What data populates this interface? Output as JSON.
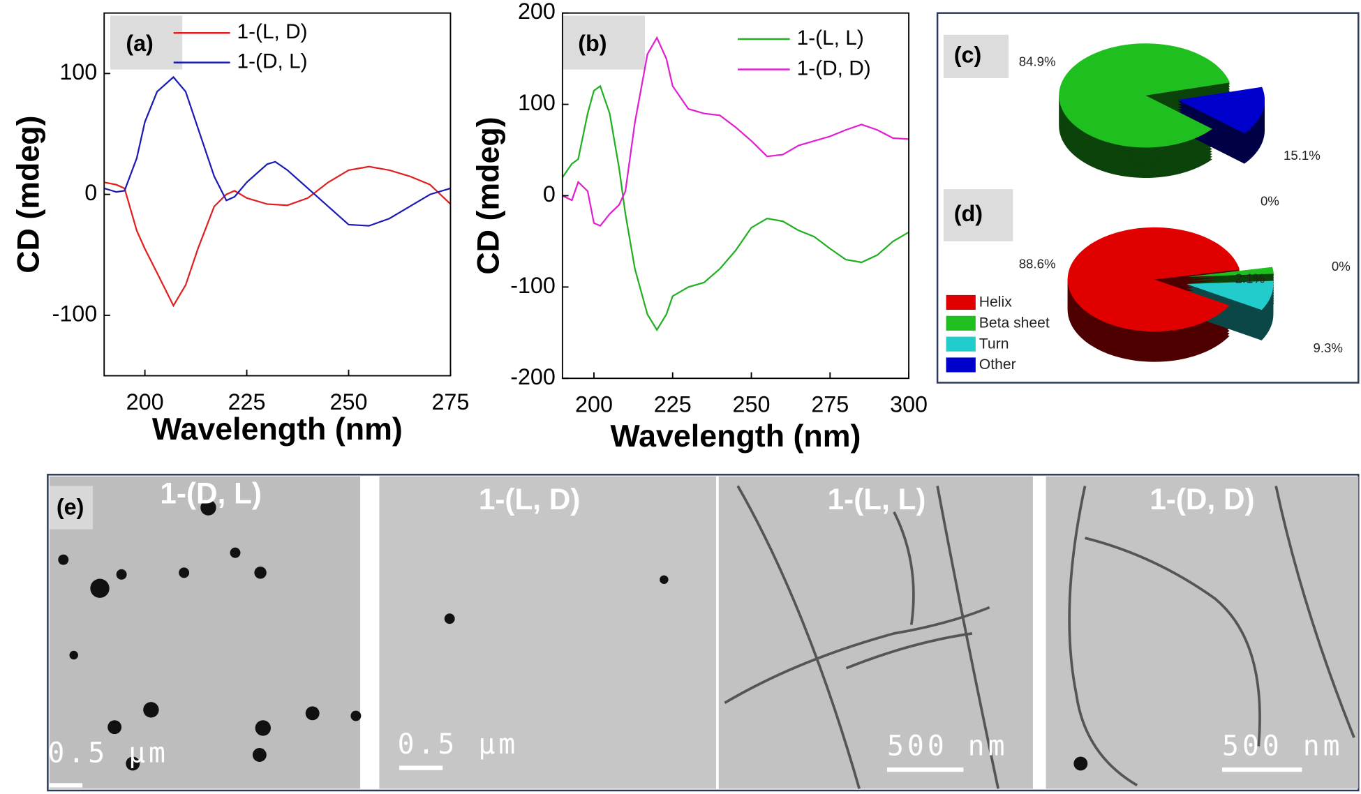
{
  "chart_data": [
    {
      "type": "line",
      "panel_label": "(a)",
      "xlabel": "Wavelength (nm)",
      "ylabel": "CD (mdeg)",
      "xlim": [
        190,
        275
      ],
      "xticks": [
        200,
        225,
        250,
        275
      ],
      "ylim": [
        -150,
        150
      ],
      "yticks": [
        -100,
        0,
        100
      ],
      "series": [
        {
          "name": "1-(L, D)",
          "color": "#e02020",
          "x": [
            190,
            193,
            195,
            198,
            200,
            203,
            207,
            210,
            213,
            217,
            220,
            222,
            225,
            230,
            235,
            240,
            245,
            250,
            255,
            260,
            265,
            270,
            275
          ],
          "values": [
            10,
            8,
            5,
            -30,
            -45,
            -65,
            -92,
            -75,
            -45,
            -10,
            0,
            3,
            -3,
            -8,
            -9,
            -3,
            10,
            20,
            23,
            20,
            15,
            8,
            -8
          ]
        },
        {
          "name": "1-(D, L)",
          "color": "#1a1ab4",
          "x": [
            190,
            193,
            195,
            198,
            200,
            203,
            207,
            210,
            213,
            217,
            220,
            222,
            225,
            230,
            232,
            235,
            240,
            245,
            250,
            255,
            260,
            265,
            270,
            275
          ],
          "values": [
            5,
            2,
            3,
            30,
            60,
            85,
            97,
            85,
            55,
            15,
            -5,
            -2,
            10,
            25,
            27,
            20,
            5,
            -10,
            -25,
            -26,
            -20,
            -10,
            0,
            5
          ]
        }
      ]
    },
    {
      "type": "line",
      "panel_label": "(b)",
      "xlabel": "Wavelength (nm)",
      "ylabel": "CD (mdeg)",
      "xlim": [
        190,
        300
      ],
      "xticks": [
        200,
        225,
        250,
        275,
        300
      ],
      "ylim": [
        -200,
        200
      ],
      "yticks": [
        -200,
        -100,
        0,
        100,
        200
      ],
      "series": [
        {
          "name": "1-(L, L)",
          "color": "#22b022",
          "x": [
            190,
            193,
            195,
            198,
            200,
            202,
            205,
            208,
            210,
            213,
            217,
            220,
            223,
            225,
            230,
            235,
            240,
            245,
            250,
            255,
            260,
            265,
            270,
            275,
            280,
            285,
            290,
            295,
            300
          ],
          "values": [
            20,
            35,
            40,
            90,
            115,
            120,
            90,
            30,
            -20,
            -80,
            -130,
            -147,
            -130,
            -110,
            -100,
            -95,
            -80,
            -60,
            -35,
            -25,
            -28,
            -38,
            -45,
            -58,
            -70,
            -73,
            -65,
            -50,
            -40
          ]
        },
        {
          "name": "1-(D, D)",
          "color": "#e020d0",
          "x": [
            190,
            193,
            195,
            198,
            200,
            202,
            205,
            208,
            210,
            213,
            217,
            220,
            223,
            225,
            230,
            235,
            240,
            245,
            250,
            255,
            260,
            265,
            270,
            275,
            280,
            285,
            290,
            295,
            300
          ],
          "values": [
            0,
            -5,
            15,
            5,
            -30,
            -33,
            -20,
            -10,
            5,
            80,
            155,
            173,
            150,
            120,
            95,
            90,
            88,
            75,
            60,
            43,
            45,
            55,
            60,
            65,
            72,
            78,
            72,
            63,
            62
          ]
        }
      ]
    },
    {
      "type": "pie",
      "panel_label": "(c)",
      "values": [
        84.9,
        15.1,
        0
      ],
      "value_labels": [
        "84.9%",
        "15.1%",
        "0%"
      ],
      "colors": [
        "#1fbf1f",
        "#0000cc",
        "#e00000"
      ]
    },
    {
      "type": "pie",
      "panel_label": "(d)",
      "categories": [
        "Helix",
        "Beta sheet",
        "Turn",
        "Other"
      ],
      "values": [
        88.6,
        2.1,
        9.3,
        0
      ],
      "value_labels": [
        "88.6%",
        "2.1%",
        "9.3%",
        "0%"
      ],
      "colors": [
        "#e00000",
        "#1fbf1f",
        "#22cccc",
        "#0000cc"
      ],
      "legend": "left"
    }
  ],
  "panel_e": {
    "label": "(e)",
    "images": [
      {
        "title": "1-(D, L)",
        "scale_bar": "0.5 µm"
      },
      {
        "title": "1-(L, D)",
        "scale_bar": "0.5 µm"
      },
      {
        "title": "1-(L, L)",
        "scale_bar": "500 nm"
      },
      {
        "title": "1-(D, D)",
        "scale_bar": "500 nm"
      }
    ]
  }
}
